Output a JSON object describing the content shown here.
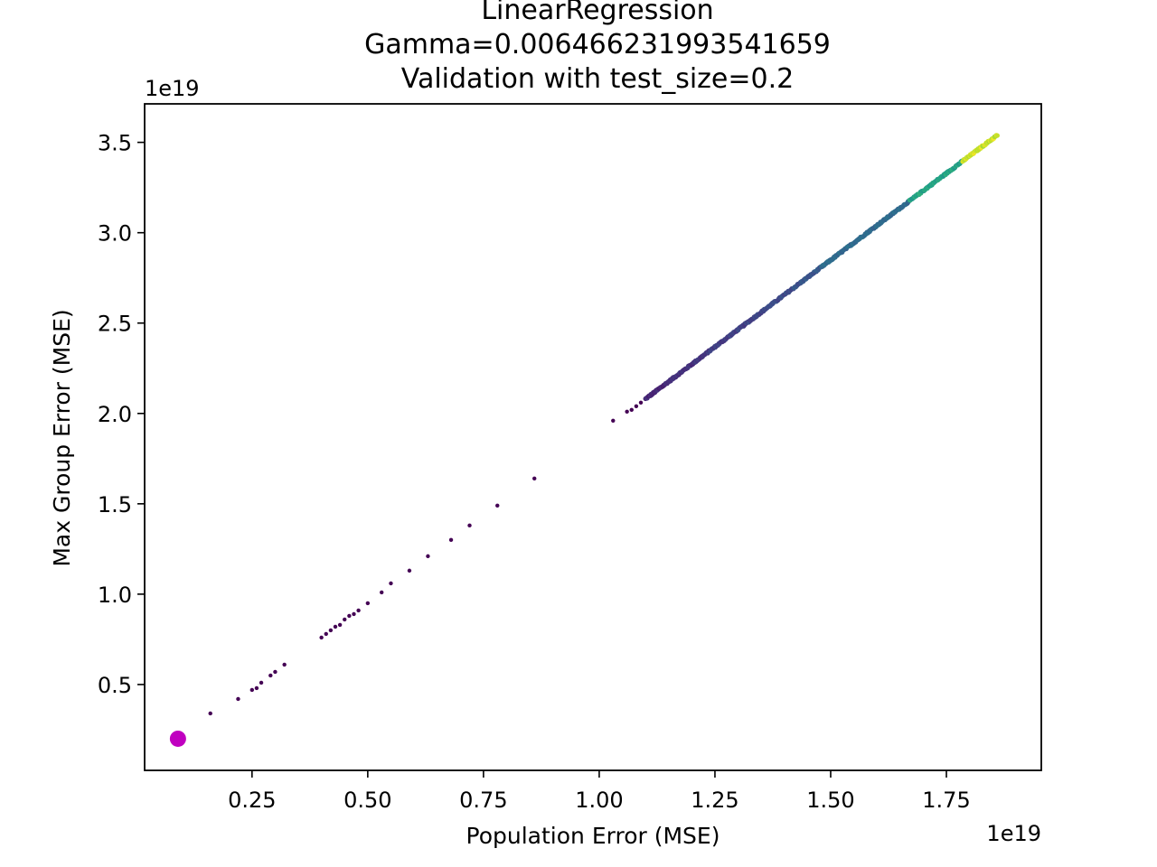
{
  "chart_data": {
    "type": "scatter",
    "title_lines": [
      "LinearRegression",
      "Gamma=0.006466231993541659",
      "Validation with test_size=0.2"
    ],
    "xlabel": "Population Error (MSE)",
    "ylabel": "Max Group Error (MSE)",
    "x_offset_text": "1e19",
    "y_offset_text": "1e19",
    "x_scale": 1e+19,
    "y_scale": 1e+19,
    "xlim": [
      0.018,
      1.955
    ],
    "ylim": [
      0.025,
      3.713
    ],
    "x_ticks": [
      0.25,
      0.5,
      0.75,
      1.0,
      1.25,
      1.5,
      1.75
    ],
    "x_tick_labels": [
      "0.25",
      "0.50",
      "0.75",
      "1.00",
      "1.25",
      "1.50",
      "1.75"
    ],
    "y_ticks": [
      0.5,
      1.0,
      1.5,
      2.0,
      2.5,
      3.0,
      3.5
    ],
    "y_tick_labels": [
      "0.5",
      "1.0",
      "1.5",
      "2.0",
      "2.5",
      "3.0",
      "3.5"
    ],
    "grid": false,
    "colormap": "viridis",
    "sparse_points": [
      [
        0.16,
        0.34
      ],
      [
        0.22,
        0.42
      ],
      [
        0.25,
        0.47
      ],
      [
        0.26,
        0.48
      ],
      [
        0.27,
        0.51
      ],
      [
        0.29,
        0.55
      ],
      [
        0.3,
        0.57
      ],
      [
        0.32,
        0.61
      ],
      [
        0.4,
        0.76
      ],
      [
        0.41,
        0.78
      ],
      [
        0.42,
        0.8
      ],
      [
        0.43,
        0.82
      ],
      [
        0.44,
        0.83
      ],
      [
        0.45,
        0.86
      ],
      [
        0.46,
        0.88
      ],
      [
        0.47,
        0.89
      ],
      [
        0.48,
        0.91
      ],
      [
        0.5,
        0.95
      ],
      [
        0.53,
        1.01
      ],
      [
        0.55,
        1.06
      ],
      [
        0.59,
        1.13
      ],
      [
        0.63,
        1.21
      ],
      [
        0.68,
        1.3
      ],
      [
        0.72,
        1.38
      ],
      [
        0.78,
        1.49
      ],
      [
        0.86,
        1.64
      ],
      [
        1.03,
        1.96
      ],
      [
        1.06,
        2.01
      ],
      [
        1.07,
        2.02
      ],
      [
        1.08,
        2.04
      ],
      [
        1.09,
        2.06
      ],
      [
        1.1,
        2.08
      ]
    ],
    "dense_segment": {
      "x_range": [
        1.1,
        1.86
      ],
      "y_range": [
        2.08,
        3.54
      ],
      "approx_count": 600,
      "color_trend": "viridis low (purple) at lower-left rising to yellow at upper-right"
    },
    "highlight_point": {
      "x": 0.09,
      "y": 0.2,
      "color": "#c000c0"
    },
    "point_color_default": "#440154"
  }
}
